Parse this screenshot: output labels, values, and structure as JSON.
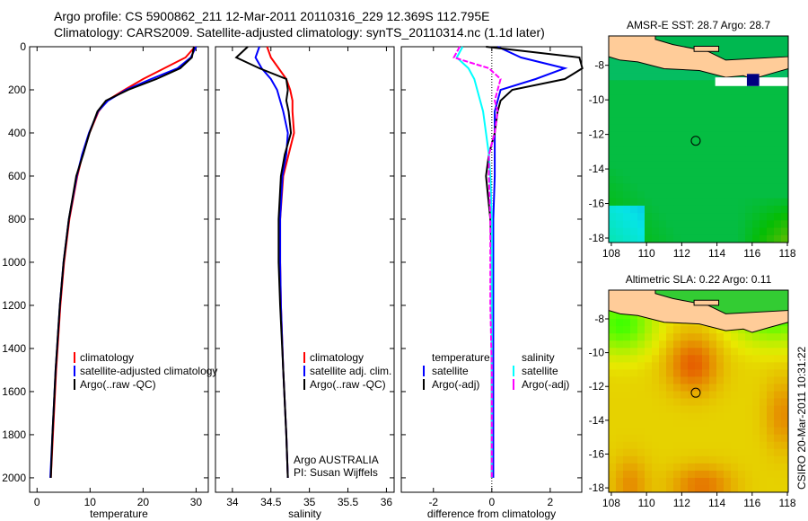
{
  "header": {
    "line1": "Argo profile: CS 5900862_211 12-Mar-2011 20110316_229 12.369S 112.795E",
    "line2": "Climatology: CARS2009. Satellite-adjusted climatology: synTS_20110314.nc (1.1d later)"
  },
  "side_label": "CSIRO 20-Mar-2011 10:31:22",
  "colors": {
    "red": "#ff0000",
    "blue": "#0000ff",
    "black": "#000000",
    "cyan": "#00ffff",
    "magenta": "#ff00ff",
    "land": "#ffcc99"
  },
  "chart_data": [
    {
      "type": "line",
      "name": "temperature",
      "xlabel": "temperature",
      "xlim": [
        -1.4,
        32.3
      ],
      "ylim": [
        0,
        2067
      ],
      "yreversed": true,
      "xticks": [
        0,
        10,
        20,
        30
      ],
      "yticks": [
        0,
        200,
        400,
        600,
        800,
        1000,
        1200,
        1400,
        1600,
        1800,
        2000
      ],
      "depth": [
        0,
        50,
        100,
        150,
        200,
        250,
        300,
        400,
        500,
        600,
        800,
        1000,
        1200,
        1500,
        1800,
        2000
      ],
      "series": [
        {
          "name": "climatology",
          "color": "#ff0000",
          "values": [
            29.8,
            28.0,
            24.0,
            20.0,
            16.5,
            13.2,
            11.6,
            9.9,
            8.6,
            7.6,
            6.1,
            5.1,
            4.4,
            3.6,
            3.0,
            2.6
          ]
        },
        {
          "name": "satellite-adjusted climatology",
          "color": "#0000ff",
          "values": [
            30.0,
            29.0,
            26.5,
            21.5,
            16.8,
            13.4,
            11.5,
            9.8,
            8.5,
            7.5,
            6.0,
            5.0,
            4.3,
            3.5,
            2.9,
            2.5
          ]
        },
        {
          "name": "Argo(..raw -QC)",
          "color": "#000000",
          "values": [
            29.6,
            29.2,
            27.0,
            22.5,
            17.2,
            13.0,
            11.4,
            9.9,
            8.7,
            7.4,
            6.0,
            5.0,
            4.3,
            3.5,
            2.9,
            2.6
          ]
        }
      ],
      "legend": [
        "climatology",
        "satellite-adjusted climatology",
        "Argo(..raw -QC)"
      ]
    },
    {
      "type": "line",
      "name": "salinity",
      "xlabel": "salinity",
      "xlim": [
        33.78,
        36.1
      ],
      "ylim": [
        0,
        2067
      ],
      "yreversed": true,
      "xticks": [
        34,
        34.5,
        35,
        35.5,
        36
      ],
      "depth": [
        0,
        50,
        100,
        150,
        200,
        250,
        300,
        400,
        500,
        600,
        800,
        1000,
        1200,
        1500,
        1800,
        2000
      ],
      "series": [
        {
          "name": "climatology",
          "color": "#ff0000",
          "values": [
            34.45,
            34.5,
            34.6,
            34.7,
            34.75,
            34.78,
            34.78,
            34.8,
            34.73,
            34.66,
            34.62,
            34.62,
            34.63,
            34.66,
            34.7,
            34.72
          ]
        },
        {
          "name": "satellite adj. clim.",
          "color": "#0000ff",
          "values": [
            34.35,
            34.3,
            34.38,
            34.5,
            34.58,
            34.62,
            34.66,
            34.72,
            34.7,
            34.65,
            34.62,
            34.62,
            34.63,
            34.66,
            34.7,
            34.72
          ]
        },
        {
          "name": "Argo(..raw -QC)",
          "color": "#000000",
          "values": [
            34.2,
            34.05,
            34.35,
            34.7,
            34.72,
            34.7,
            34.73,
            34.76,
            34.68,
            34.63,
            34.6,
            34.6,
            34.62,
            34.66,
            34.7,
            34.72
          ]
        }
      ],
      "legend": [
        "climatology",
        "satellite adj. clim.",
        "Argo(..raw -QC)"
      ],
      "annotation": [
        "Argo AUSTRALIA",
        "PI: Susan Wijffels"
      ]
    },
    {
      "type": "line",
      "name": "difference",
      "xlabel": "difference from climatology",
      "xlim": [
        -3.1,
        3.08
      ],
      "ylim": [
        0,
        2067
      ],
      "yreversed": true,
      "xticks": [
        -2,
        0,
        2
      ],
      "depth": [
        0,
        50,
        100,
        150,
        200,
        250,
        300,
        400,
        500,
        600,
        800,
        1000,
        1200,
        1500,
        1800,
        2000
      ],
      "series": [
        {
          "name": "temperature satellite",
          "color": "#0000ff",
          "values": [
            0.2,
            1.0,
            2.5,
            1.5,
            0.3,
            0.2,
            0.1,
            0.1,
            0.1,
            0.1,
            0.05,
            0.05,
            0.05,
            0.05,
            0.05,
            0.05
          ]
        },
        {
          "name": "temperature Argo(-adj)",
          "color": "#000000",
          "values": [
            -0.2,
            3.0,
            3.1,
            2.5,
            0.7,
            0.3,
            0.2,
            0.1,
            -0.1,
            -0.2,
            -0.05,
            0,
            0,
            0,
            0,
            0
          ]
        },
        {
          "name": "salinity satellite",
          "color": "#00ffff",
          "values": [
            -1.0,
            -1.2,
            -0.8,
            -0.6,
            -0.5,
            -0.4,
            -0.3,
            -0.2,
            -0.1,
            -0.05,
            0,
            0,
            0,
            0,
            0,
            0
          ]
        },
        {
          "name": "salinity Argo(-adj)",
          "color": "#ff00ff",
          "values": [
            -1.1,
            -1.3,
            -0.1,
            0.3,
            0.2,
            0.1,
            0.2,
            0.1,
            -0.1,
            -0.1,
            -0.05,
            -0.05,
            -0.05,
            0,
            0,
            0
          ]
        }
      ],
      "legend_temperature": {
        "title": "temperature",
        "items": [
          "satellite",
          "Argo(-adj)"
        ]
      },
      "legend_salinity": {
        "title": "salinity",
        "items": [
          "satellite",
          "Argo(-adj)"
        ]
      }
    },
    {
      "type": "heatmap",
      "name": "sst-map",
      "title": "AMSR-E SST: 28.7 Argo: 28.7",
      "xlim": [
        107.85,
        118.05
      ],
      "ylim": [
        -18.26,
        -6.3
      ],
      "xticks": [
        108,
        110,
        112,
        114,
        116,
        118
      ],
      "yticks": [
        -8,
        -10,
        -12,
        -14,
        -16,
        -18
      ],
      "marker": [
        112.795,
        -12.369
      ]
    },
    {
      "type": "heatmap",
      "name": "sla-map",
      "title": "Altimetric SLA: 0.22 Argo: 0.11",
      "xlim": [
        107.85,
        118.05
      ],
      "ylim": [
        -18.26,
        -6.3
      ],
      "xticks": [
        108,
        110,
        112,
        114,
        116,
        118
      ],
      "yticks": [
        -8,
        -10,
        -12,
        -14,
        -16,
        -18
      ],
      "marker": [
        112.795,
        -12.369
      ]
    }
  ]
}
